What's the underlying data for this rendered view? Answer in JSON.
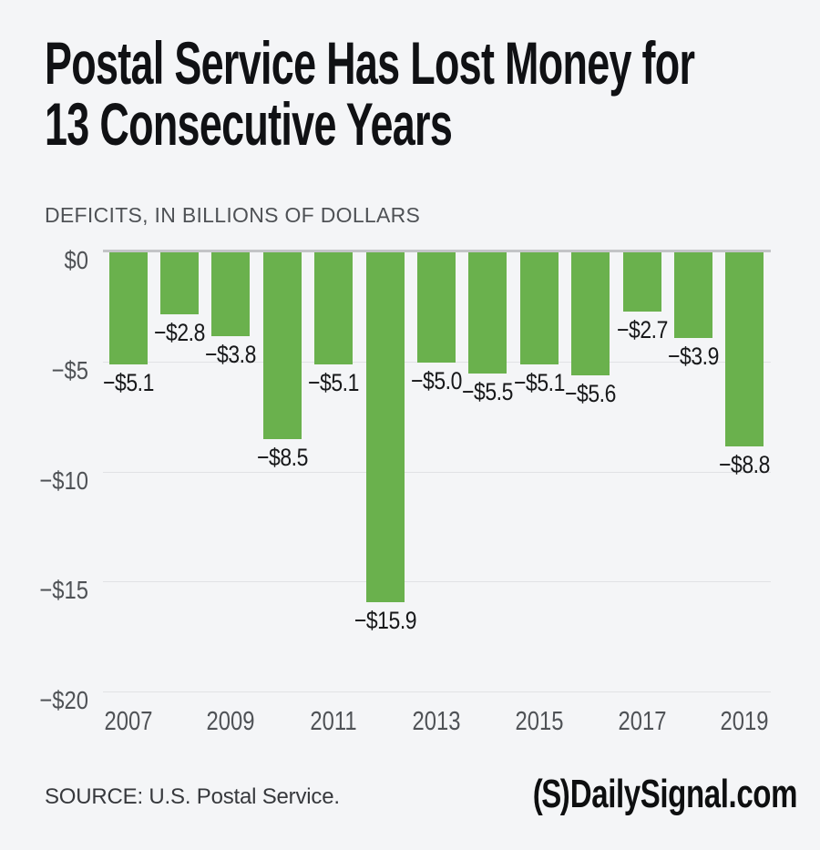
{
  "header": {
    "title_lines": [
      "Postal Service Has Lost Money for",
      "13 Consecutive Years"
    ],
    "subtitle": "DEFICITS, IN BILLIONS OF DOLLARS"
  },
  "chart_data": {
    "type": "bar",
    "title": "Postal Service Has Lost Money for 13 Consecutive Years",
    "units_label": "DEFICITS, IN BILLIONS OF DOLLARS",
    "categories": [
      "2007",
      "2008",
      "2009",
      "2010",
      "2011",
      "2012",
      "2013",
      "2014",
      "2015",
      "2016",
      "2017",
      "2018",
      "2019"
    ],
    "values": [
      -5.1,
      -2.8,
      -3.8,
      -8.5,
      -5.1,
      -15.9,
      -5.0,
      -5.5,
      -5.1,
      -5.6,
      -2.7,
      -3.9,
      -8.8
    ],
    "bar_labels": [
      "−$5.1",
      "−$2.8",
      "−$3.8",
      "−$8.5",
      "−$5.1",
      "−$15.9",
      "−$5.0",
      "−$5.5",
      "−$5.1",
      "−$5.6",
      "−$2.7",
      "−$3.9",
      "−$8.8"
    ],
    "x_tick_labels": [
      "2007",
      "2009",
      "2011",
      "2013",
      "2015",
      "2017",
      "2019"
    ],
    "y_tick_values": [
      0,
      -5,
      -10,
      -15,
      -20
    ],
    "y_tick_labels": [
      "$0",
      "−$5",
      "−$10",
      "−$15",
      "−$20"
    ],
    "ylim": [
      -20,
      0
    ],
    "xlabel": "",
    "ylabel": "",
    "grid": "horizontal",
    "legend": "none",
    "bar_color": "#6ab14d"
  },
  "footer": {
    "source": "SOURCE: U.S. Postal Service.",
    "logo_mark": "(S)",
    "logo_text": "DailySignal.com"
  },
  "colors": {
    "background": "#f4f5f7",
    "bar": "#6ab14d",
    "zero_axis": "#c3c4c7",
    "gridline": "#e1e2e5",
    "tick_text": "#4f5256",
    "value_text": "#17181a",
    "title_text": "#101114"
  }
}
